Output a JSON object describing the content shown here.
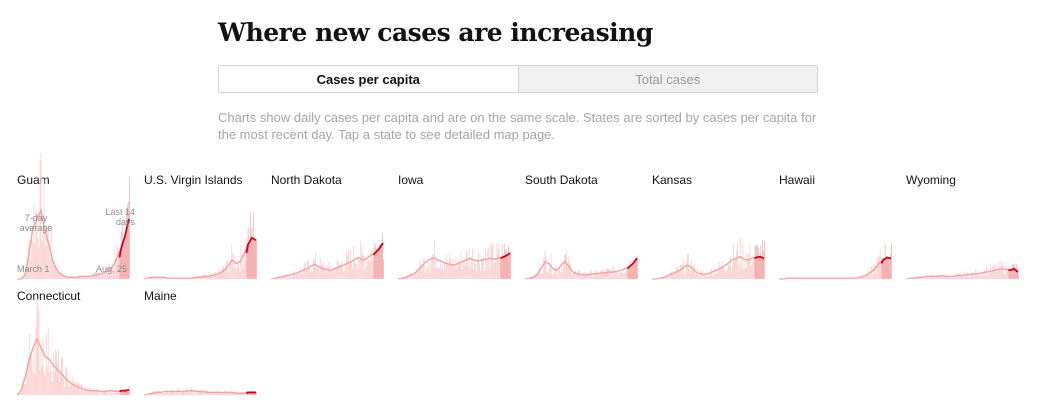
{
  "title": "Where new cases are increasing",
  "toggle": {
    "active_label": "Cases per capita",
    "inactive_label": "Total cases"
  },
  "description": "Charts show daily cases per capita and are on the same scale. States are sorted by cases per capita for the most recent day. Tap a state to see detailed map page.",
  "annotations": {
    "avg_line1": "7-day",
    "avg_line2": "average",
    "last_line1": "Last 14",
    "last_line2": "days",
    "start_date": "March 1",
    "end_date": "Aug. 25"
  },
  "colors": {
    "avg_line": "#f2a3a3",
    "bars": "#f9cdcd",
    "highlight_fill": "#f4b0b0",
    "recent_line": "#d0021b"
  },
  "chart_data": {
    "type": "area",
    "x_start": "March 1",
    "x_end": "Aug. 25",
    "ylim": [
      0,
      1
    ],
    "y_unit": "relative daily cases per capita (shared scale)",
    "series": [
      {
        "name": "Guam",
        "values": [
          0,
          0,
          0.05,
          0.3,
          0.6,
          0.7,
          0.8,
          0.55,
          0.4,
          0.2,
          0.1,
          0.05,
          0.03,
          0.02,
          0.02,
          0.02,
          0.03,
          0.03,
          0.03,
          0.04,
          0.05,
          0.06,
          0.08,
          0.1,
          0.15,
          0.25,
          0.35,
          0.5,
          0.7
        ]
      },
      {
        "name": "U.S. Virgin Islands",
        "values": [
          0,
          0.01,
          0.02,
          0.02,
          0.02,
          0.02,
          0.01,
          0.01,
          0.01,
          0.01,
          0.01,
          0.01,
          0.01,
          0.02,
          0.02,
          0.03,
          0.03,
          0.04,
          0.05,
          0.07,
          0.1,
          0.15,
          0.22,
          0.18,
          0.2,
          0.3,
          0.4,
          0.48,
          0.45
        ]
      },
      {
        "name": "North Dakota",
        "values": [
          0,
          0.01,
          0.02,
          0.03,
          0.04,
          0.05,
          0.06,
          0.08,
          0.1,
          0.12,
          0.15,
          0.17,
          0.14,
          0.12,
          0.11,
          0.1,
          0.12,
          0.14,
          0.16,
          0.18,
          0.2,
          0.23,
          0.25,
          0.22,
          0.24,
          0.28,
          0.3,
          0.35,
          0.42
        ]
      },
      {
        "name": "Iowa",
        "values": [
          0,
          0.01,
          0.02,
          0.04,
          0.06,
          0.1,
          0.15,
          0.2,
          0.23,
          0.25,
          0.22,
          0.2,
          0.18,
          0.17,
          0.16,
          0.18,
          0.2,
          0.22,
          0.24,
          0.22,
          0.21,
          0.22,
          0.23,
          0.24,
          0.23,
          0.24,
          0.25,
          0.27,
          0.3
        ]
      },
      {
        "name": "South Dakota",
        "values": [
          0,
          0.01,
          0.02,
          0.05,
          0.12,
          0.2,
          0.18,
          0.12,
          0.1,
          0.16,
          0.2,
          0.14,
          0.08,
          0.06,
          0.05,
          0.05,
          0.05,
          0.06,
          0.06,
          0.07,
          0.07,
          0.08,
          0.08,
          0.09,
          0.1,
          0.12,
          0.14,
          0.18,
          0.24
        ]
      },
      {
        "name": "Kansas",
        "values": [
          0,
          0,
          0.01,
          0.02,
          0.04,
          0.06,
          0.08,
          0.1,
          0.14,
          0.16,
          0.13,
          0.08,
          0.06,
          0.05,
          0.06,
          0.08,
          0.1,
          0.12,
          0.15,
          0.18,
          0.22,
          0.24,
          0.26,
          0.23,
          0.22,
          0.24,
          0.25,
          0.26,
          0.24
        ]
      },
      {
        "name": "Hawaii",
        "values": [
          0,
          0,
          0.01,
          0.01,
          0.01,
          0.01,
          0.01,
          0.01,
          0.01,
          0.01,
          0.01,
          0.01,
          0.01,
          0.01,
          0.01,
          0.01,
          0.01,
          0.01,
          0.01,
          0.01,
          0.02,
          0.03,
          0.05,
          0.08,
          0.12,
          0.18,
          0.22,
          0.25,
          0.24
        ]
      },
      {
        "name": "Wyoming",
        "values": [
          0,
          0.01,
          0.01,
          0.02,
          0.02,
          0.03,
          0.03,
          0.03,
          0.03,
          0.04,
          0.03,
          0.03,
          0.03,
          0.04,
          0.04,
          0.05,
          0.05,
          0.06,
          0.06,
          0.07,
          0.08,
          0.09,
          0.1,
          0.11,
          0.12,
          0.11,
          0.1,
          0.12,
          0.08
        ]
      },
      {
        "name": "Connecticut",
        "values": [
          0,
          0.05,
          0.2,
          0.4,
          0.55,
          0.65,
          0.55,
          0.45,
          0.42,
          0.35,
          0.3,
          0.25,
          0.2,
          0.15,
          0.12,
          0.1,
          0.08,
          0.06,
          0.05,
          0.05,
          0.05,
          0.04,
          0.04,
          0.05,
          0.05,
          0.04,
          0.05,
          0.05,
          0.06
        ]
      },
      {
        "name": "Maine",
        "values": [
          0,
          0.01,
          0.02,
          0.03,
          0.03,
          0.04,
          0.04,
          0.04,
          0.04,
          0.04,
          0.04,
          0.05,
          0.05,
          0.04,
          0.04,
          0.04,
          0.03,
          0.03,
          0.03,
          0.03,
          0.03,
          0.03,
          0.03,
          0.02,
          0.02,
          0.02,
          0.03,
          0.03,
          0.03
        ]
      }
    ]
  }
}
